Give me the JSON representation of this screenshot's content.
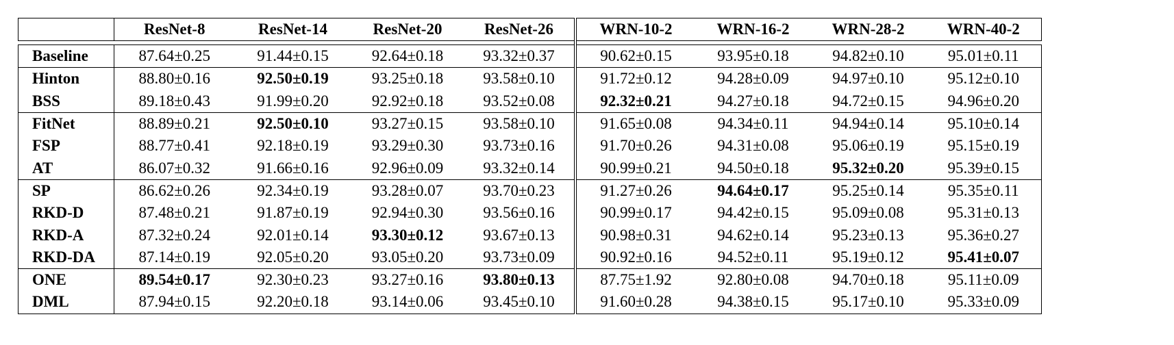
{
  "headers": [
    "",
    "ResNet-8",
    "ResNet-14",
    "ResNet-20",
    "ResNet-26",
    "WRN-10-2",
    "WRN-16-2",
    "WRN-28-2",
    "WRN-40-2"
  ],
  "groups": [
    {
      "rows": [
        {
          "method": "Baseline",
          "cells": [
            "87.64±0.25",
            "91.44±0.15",
            "92.64±0.18",
            "93.32±0.37",
            "90.62±0.15",
            "93.95±0.18",
            "94.82±0.10",
            "95.01±0.11"
          ],
          "best": []
        }
      ]
    },
    {
      "rows": [
        {
          "method": "Hinton",
          "cells": [
            "88.80±0.16",
            "92.50±0.19",
            "93.25±0.18",
            "93.58±0.10",
            "91.72±0.12",
            "94.28±0.09",
            "94.97±0.10",
            "95.12±0.10"
          ],
          "best": [
            1
          ]
        },
        {
          "method": "BSS",
          "cells": [
            "89.18±0.43",
            "91.99±0.20",
            "92.92±0.18",
            "93.52±0.08",
            "92.32±0.21",
            "94.27±0.18",
            "94.72±0.15",
            "94.96±0.20"
          ],
          "best": [
            4
          ]
        }
      ]
    },
    {
      "rows": [
        {
          "method": "FitNet",
          "cells": [
            "88.89±0.21",
            "92.50±0.10",
            "93.27±0.15",
            "93.58±0.10",
            "91.65±0.08",
            "94.34±0.11",
            "94.94±0.14",
            "95.10±0.14"
          ],
          "best": [
            1
          ]
        },
        {
          "method": "FSP",
          "cells": [
            "88.77±0.41",
            "92.18±0.19",
            "93.29±0.30",
            "93.73±0.16",
            "91.70±0.26",
            "94.31±0.08",
            "95.06±0.19",
            "95.15±0.19"
          ],
          "best": []
        },
        {
          "method": "AT",
          "cells": [
            "86.07±0.32",
            "91.66±0.16",
            "92.96±0.09",
            "93.32±0.14",
            "90.99±0.21",
            "94.50±0.18",
            "95.32±0.20",
            "95.39±0.15"
          ],
          "best": [
            6
          ]
        }
      ]
    },
    {
      "rows": [
        {
          "method": "SP",
          "cells": [
            "86.62±0.26",
            "92.34±0.19",
            "93.28±0.07",
            "93.70±0.23",
            "91.27±0.26",
            "94.64±0.17",
            "95.25±0.14",
            "95.35±0.11"
          ],
          "best": [
            5
          ]
        },
        {
          "method": "RKD-D",
          "cells": [
            "87.48±0.21",
            "91.87±0.19",
            "92.94±0.30",
            "93.56±0.16",
            "90.99±0.17",
            "94.42±0.15",
            "95.09±0.08",
            "95.31±0.13"
          ],
          "best": []
        },
        {
          "method": "RKD-A",
          "cells": [
            "87.32±0.24",
            "92.01±0.14",
            "93.30±0.12",
            "93.67±0.13",
            "90.98±0.31",
            "94.62±0.14",
            "95.23±0.13",
            "95.36±0.27"
          ],
          "best": [
            2
          ]
        },
        {
          "method": "RKD-DA",
          "cells": [
            "87.14±0.19",
            "92.05±0.20",
            "93.05±0.20",
            "93.73±0.09",
            "90.92±0.16",
            "94.52±0.11",
            "95.19±0.12",
            "95.41±0.07"
          ],
          "best": [
            7
          ]
        }
      ]
    },
    {
      "rows": [
        {
          "method": "ONE",
          "cells": [
            "89.54±0.17",
            "92.30±0.23",
            "93.27±0.16",
            "93.80±0.13",
            "87.75±1.92",
            "92.80±0.08",
            "94.70±0.18",
            "95.11±0.09"
          ],
          "best": [
            0,
            3
          ]
        },
        {
          "method": "DML",
          "cells": [
            "87.94±0.15",
            "92.20±0.18",
            "93.14±0.06",
            "93.45±0.10",
            "91.60±0.28",
            "94.38±0.15",
            "95.17±0.10",
            "95.33±0.09"
          ],
          "best": []
        }
      ]
    }
  ]
}
